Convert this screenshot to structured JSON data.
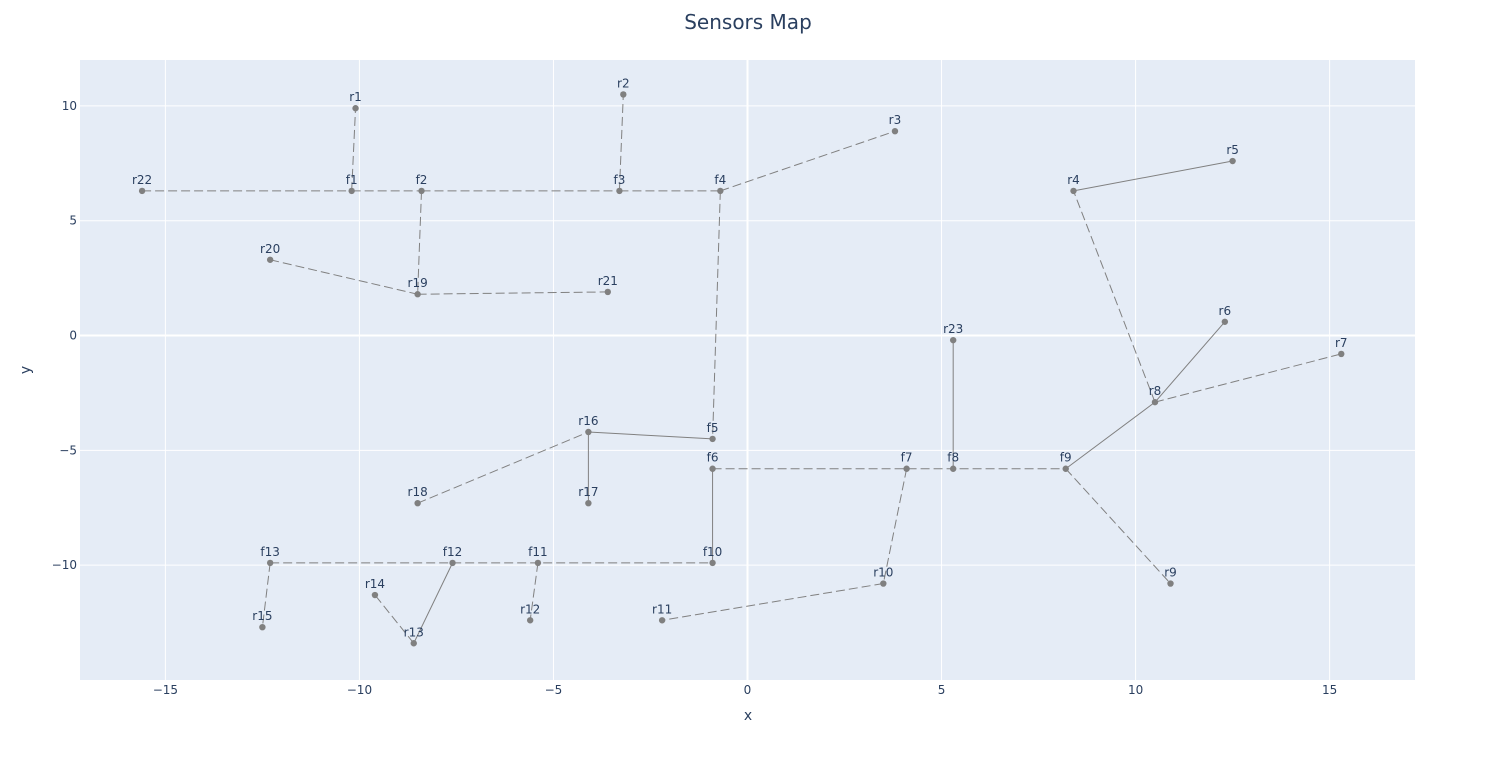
{
  "chart_data": {
    "type": "scatter",
    "title": "Sensors Map",
    "xlabel": "x",
    "ylabel": "y",
    "xlim": [
      -17.2,
      17.2
    ],
    "ylim": [
      -15.0,
      12.0
    ],
    "xticks": [
      -15,
      -10,
      -5,
      0,
      5,
      10,
      15
    ],
    "yticks": [
      -10,
      -5,
      0,
      5,
      10
    ],
    "tick_labels_x": [
      "−15",
      "−10",
      "−5",
      "0",
      "5",
      "10",
      "15"
    ],
    "tick_labels_y": [
      "−10",
      "−5",
      "0",
      "5",
      "10"
    ],
    "grid": true,
    "colors": {
      "plot_bg": "#e5ecf6",
      "grid": "#ffffff",
      "marker": "#808080",
      "line": "#808080",
      "text": "#2a3f5f"
    },
    "points": [
      {
        "name": "r1",
        "x": -10.1,
        "y": 9.9
      },
      {
        "name": "r2",
        "x": -3.2,
        "y": 10.5
      },
      {
        "name": "r3",
        "x": 3.8,
        "y": 8.9
      },
      {
        "name": "r4",
        "x": 8.4,
        "y": 6.3
      },
      {
        "name": "r5",
        "x": 12.5,
        "y": 7.6
      },
      {
        "name": "r6",
        "x": 12.3,
        "y": 0.6
      },
      {
        "name": "r7",
        "x": 15.3,
        "y": -0.8
      },
      {
        "name": "r8",
        "x": 10.5,
        "y": -2.9
      },
      {
        "name": "r9",
        "x": 10.9,
        "y": -10.8
      },
      {
        "name": "r10",
        "x": 3.5,
        "y": -10.8
      },
      {
        "name": "r11",
        "x": -2.2,
        "y": -12.4
      },
      {
        "name": "r12",
        "x": -5.6,
        "y": -12.4
      },
      {
        "name": "r13",
        "x": -8.6,
        "y": -13.4
      },
      {
        "name": "r14",
        "x": -9.6,
        "y": -11.3
      },
      {
        "name": "r15",
        "x": -12.5,
        "y": -12.7
      },
      {
        "name": "r16",
        "x": -4.1,
        "y": -4.2
      },
      {
        "name": "r17",
        "x": -4.1,
        "y": -7.3
      },
      {
        "name": "r18",
        "x": -8.5,
        "y": -7.3
      },
      {
        "name": "r19",
        "x": -8.5,
        "y": 1.8
      },
      {
        "name": "r20",
        "x": -12.3,
        "y": 3.3
      },
      {
        "name": "r21",
        "x": -3.6,
        "y": 1.9
      },
      {
        "name": "r22",
        "x": -15.6,
        "y": 6.3
      },
      {
        "name": "r23",
        "x": 5.3,
        "y": -0.2
      },
      {
        "name": "f1",
        "x": -10.2,
        "y": 6.3
      },
      {
        "name": "f2",
        "x": -8.4,
        "y": 6.3
      },
      {
        "name": "f3",
        "x": -3.3,
        "y": 6.3
      },
      {
        "name": "f4",
        "x": -0.7,
        "y": 6.3
      },
      {
        "name": "f5",
        "x": -0.9,
        "y": -4.5
      },
      {
        "name": "f6",
        "x": -0.9,
        "y": -5.8
      },
      {
        "name": "f7",
        "x": 4.1,
        "y": -5.8
      },
      {
        "name": "f8",
        "x": 5.3,
        "y": -5.8
      },
      {
        "name": "f9",
        "x": 8.2,
        "y": -5.8
      },
      {
        "name": "f10",
        "x": -0.9,
        "y": -9.9
      },
      {
        "name": "f11",
        "x": -5.4,
        "y": -9.9
      },
      {
        "name": "f12",
        "x": -7.6,
        "y": -9.9
      },
      {
        "name": "f13",
        "x": -12.3,
        "y": -9.9
      }
    ],
    "edges": [
      {
        "from": "r22",
        "to": "f1",
        "dash": true
      },
      {
        "from": "f1",
        "to": "f2",
        "dash": true
      },
      {
        "from": "f2",
        "to": "f3",
        "dash": true
      },
      {
        "from": "f3",
        "to": "f4",
        "dash": true
      },
      {
        "from": "f1",
        "to": "r1",
        "dash": true
      },
      {
        "from": "f3",
        "to": "r2",
        "dash": true
      },
      {
        "from": "f4",
        "to": "r3",
        "dash": true
      },
      {
        "from": "f2",
        "to": "r19",
        "dash": true
      },
      {
        "from": "r20",
        "to": "r19",
        "dash": true
      },
      {
        "from": "r19",
        "to": "r21",
        "dash": true
      },
      {
        "from": "f4",
        "to": "f5",
        "dash": true
      },
      {
        "from": "r16",
        "to": "f5",
        "dash": false
      },
      {
        "from": "r16",
        "to": "r17",
        "dash": false
      },
      {
        "from": "r18",
        "to": "r16",
        "dash": true
      },
      {
        "from": "f6",
        "to": "f10",
        "dash": false
      },
      {
        "from": "f6",
        "to": "f9",
        "dash": true
      },
      {
        "from": "f7",
        "to": "r10",
        "dash": true
      },
      {
        "from": "r10",
        "to": "r11",
        "dash": true
      },
      {
        "from": "f8",
        "to": "r23",
        "dash": false
      },
      {
        "from": "f9",
        "to": "r8",
        "dash": false
      },
      {
        "from": "r8",
        "to": "r6",
        "dash": false
      },
      {
        "from": "r8",
        "to": "r7",
        "dash": true
      },
      {
        "from": "r8",
        "to": "r4",
        "dash": true
      },
      {
        "from": "r4",
        "to": "r5",
        "dash": false
      },
      {
        "from": "f9",
        "to": "r9",
        "dash": true
      },
      {
        "from": "f13",
        "to": "f10",
        "dash": true
      },
      {
        "from": "f13",
        "to": "r15",
        "dash": true
      },
      {
        "from": "f12",
        "to": "r13",
        "dash": false
      },
      {
        "from": "r13",
        "to": "r14",
        "dash": true
      },
      {
        "from": "f11",
        "to": "r12",
        "dash": true
      }
    ]
  }
}
